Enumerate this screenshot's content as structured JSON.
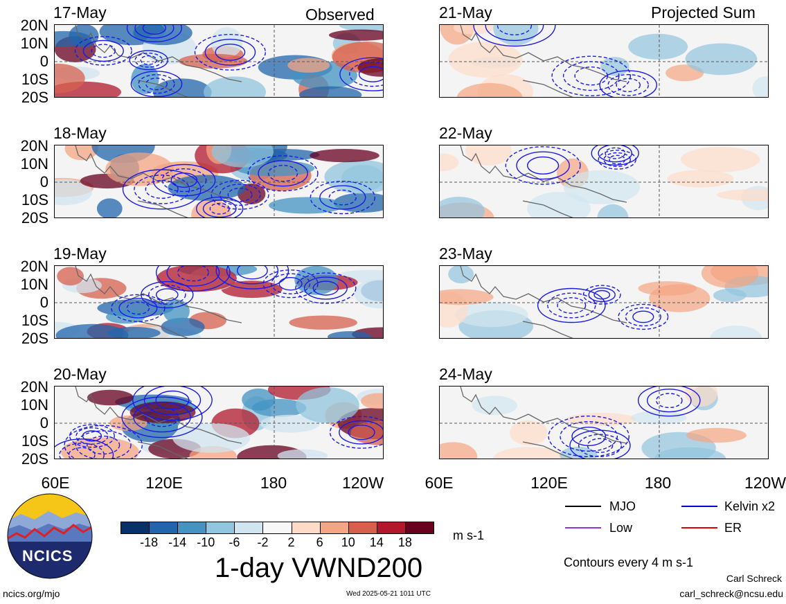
{
  "columns": {
    "left": {
      "corner_label": "Observed",
      "dates": [
        "17-May",
        "18-May",
        "19-May",
        "20-May"
      ]
    },
    "right": {
      "corner_label": "Projected Sum",
      "dates": [
        "21-May",
        "22-May",
        "23-May",
        "24-May"
      ]
    }
  },
  "latitude_labels": [
    "20N",
    "10N",
    "0",
    "10S",
    "20S"
  ],
  "longitude_labels": [
    "60E",
    "120E",
    "180",
    "120W"
  ],
  "colorbar": {
    "colors": [
      "#08306b",
      "#2166ac",
      "#4393c3",
      "#92c5de",
      "#d1e5f0",
      "#f7f7f7",
      "#fddbc7",
      "#f4a582",
      "#d6604d",
      "#b2182b",
      "#67001f"
    ],
    "tick_labels": [
      "-18",
      "-14",
      "-10",
      "-6",
      "-2",
      "2",
      "6",
      "10",
      "14",
      "18"
    ],
    "units": "m s-1"
  },
  "title": "1-day VWND200",
  "legend": {
    "items": [
      {
        "label": "MJO",
        "color": "#000000"
      },
      {
        "label": "Kelvin x2",
        "color": "#0000cc"
      },
      {
        "label": "Low",
        "color": "#9933cc"
      },
      {
        "label": "ER",
        "color": "#dd0000"
      }
    ],
    "contour_note": "Contours every 4 m s-1"
  },
  "author": "Carl Schreck",
  "email": "carl_schreck@ncsu.edu",
  "url": "ncics.org/mjo",
  "timestamp": "Wed 2025-05-21 1011 UTC",
  "logo_text": "NCICS"
}
